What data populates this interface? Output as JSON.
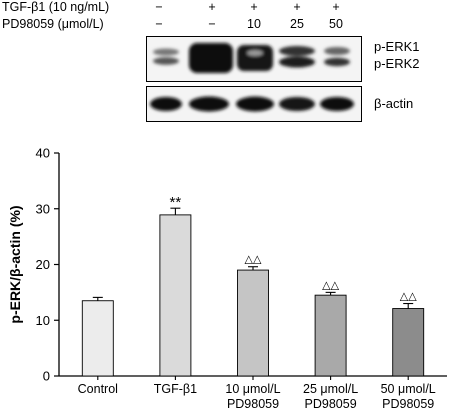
{
  "conditions": {
    "rows": [
      {
        "label": "TGF-β1 (10 ng/mL)",
        "values": [
          "−",
          "+",
          "+",
          "+",
          "+"
        ]
      },
      {
        "label": "PD98059 (μmol/L)",
        "values": [
          "−",
          "−",
          "10",
          "25",
          "50"
        ]
      }
    ]
  },
  "blots": {
    "top_labels": [
      "p-ERK1",
      "p-ERK2"
    ],
    "bottom_label": "β-actin"
  },
  "chart_data": {
    "type": "bar",
    "categories": [
      {
        "line1": "Control",
        "line2": ""
      },
      {
        "line1": "TGF-β1",
        "line2": ""
      },
      {
        "line1": "10 μmol/L",
        "line2": "PD98059"
      },
      {
        "line1": "25 μmol/L",
        "line2": "PD98059"
      },
      {
        "line1": "50 μmol/L",
        "line2": "PD98059"
      }
    ],
    "values": [
      13.5,
      28.9,
      19.0,
      14.5,
      12.1
    ],
    "errors": [
      0.6,
      1.2,
      0.6,
      0.5,
      0.9
    ],
    "annotations": [
      "",
      "**",
      "△△",
      "△△",
      "△△"
    ],
    "ylabel": "p-ERK/β-actin (%)",
    "xlabel": "",
    "ylim": [
      0,
      40
    ],
    "yticks": [
      0,
      10,
      20,
      30,
      40
    ],
    "bar_colors": [
      "#ececec",
      "#dadada",
      "#c5c5c5",
      "#a9a9a9",
      "#8c8c8c"
    ],
    "grid": false,
    "legend": "none"
  }
}
